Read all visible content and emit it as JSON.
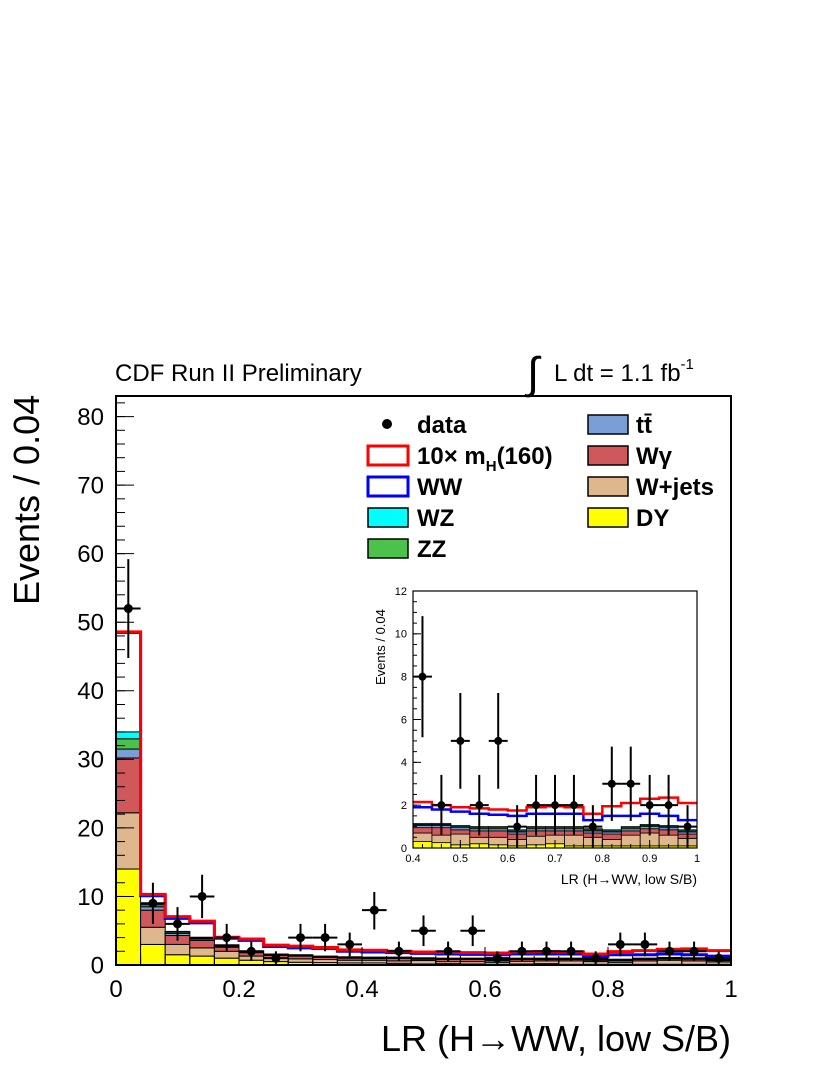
{
  "header": {
    "experiment": "CDF Run II Preliminary",
    "luminosity_prefix": "L dt = 1.1 fb",
    "luminosity_exponent": "-1"
  },
  "chart_data": [
    {
      "type": "bar",
      "stacked": true,
      "xlabel": "LR (H→WW, low S/B)",
      "ylabel": "Events / 0.04",
      "xlim": [
        0,
        1
      ],
      "ylim": [
        0,
        83
      ],
      "xticks": [
        "0",
        "0.2",
        "0.4",
        "0.6",
        "0.8",
        "1"
      ],
      "yticks": [
        "0",
        "10",
        "20",
        "30",
        "40",
        "50",
        "60",
        "70",
        "80"
      ],
      "bin_edges": [
        0,
        0.04,
        0.08,
        0.12,
        0.16,
        0.2,
        0.24,
        0.28,
        0.32,
        0.36,
        0.4,
        0.44,
        0.48,
        0.52,
        0.56,
        0.6,
        0.64,
        0.68,
        0.72,
        0.76,
        0.8,
        0.84,
        0.88,
        0.92,
        0.96,
        1.0
      ],
      "stack_order": [
        "DY",
        "W+jets",
        "Wγ",
        "tt̄",
        "ZZ",
        "WZ",
        "WW"
      ],
      "series": [
        {
          "name": "DY",
          "color": "#ffff00",
          "values": [
            14,
            3,
            1.5,
            1.3,
            1,
            0.7,
            0.5,
            0.4,
            0.35,
            0.3,
            0.3,
            0.25,
            0.15,
            0.2,
            0.15,
            0.1,
            0.15,
            0.2,
            0.1,
            0.1,
            0.1,
            0.1,
            0.1,
            0.1,
            0.1
          ]
        },
        {
          "name": "W+jets",
          "color": "#dfb78f",
          "values": [
            8.2,
            2.5,
            1.5,
            1.2,
            1,
            0.6,
            0.5,
            0.5,
            0.45,
            0.4,
            0.4,
            0.35,
            0.5,
            0.3,
            0.35,
            0.3,
            0.4,
            0.4,
            0.5,
            0.4,
            0.3,
            0.5,
            0.6,
            0.5,
            0.35
          ]
        },
        {
          "name": "Wγ",
          "color": "#d0575a",
          "values": [
            8,
            2.5,
            1.3,
            1.1,
            0.6,
            0.5,
            0.4,
            0.4,
            0.3,
            0.3,
            0.25,
            0.35,
            0.2,
            0.3,
            0.3,
            0.25,
            0.25,
            0.2,
            0.2,
            0.2,
            0.25,
            0.2,
            0.2,
            0.25,
            0.2
          ]
        },
        {
          "name": "tt̄",
          "color": "#7a9fd6",
          "values": [
            1.3,
            0.5,
            0.3,
            0.2,
            0.15,
            0.1,
            0.1,
            0.1,
            0.1,
            0.1,
            0.1,
            0.1,
            0.1,
            0.1,
            0.1,
            0.1,
            0.1,
            0.1,
            0.1,
            0.1,
            0.1,
            0.1,
            0.1,
            0.1,
            0.1
          ]
        },
        {
          "name": "ZZ",
          "color": "#4cc24c",
          "values": [
            1.5,
            0.3,
            0.2,
            0.15,
            0.1,
            0.1,
            0.05,
            0.05,
            0.05,
            0.05,
            0.05,
            0.05,
            0.05,
            0.05,
            0.05,
            0.05,
            0.05,
            0.05,
            0.05,
            0.05,
            0.05,
            0.05,
            0.05,
            0.05,
            0.05
          ]
        },
        {
          "name": "WZ",
          "color": "#00ffff",
          "values": [
            1,
            0.2,
            0.1,
            0.1,
            0.1,
            0.05,
            0.05,
            0.05,
            0.05,
            0.05,
            0.05,
            0.05,
            0.05,
            0.05,
            0.05,
            0.05,
            0.05,
            0.05,
            0.05,
            0.05,
            0.05,
            0.05,
            0.05,
            0.05,
            0.05
          ]
        },
        {
          "name": "WW",
          "color": "#0000ff",
          "values": [
            14.5,
            1.1,
            1.9,
            2.1,
            0.95,
            1.55,
            1.1,
            1.0,
            1.1,
            0.8,
            0.75,
            0.65,
            0.65,
            0.6,
            0.55,
            0.65,
            0.6,
            0.6,
            0.6,
            0.4,
            0.65,
            0.5,
            0.5,
            0.45,
            0.45
          ]
        },
        {
          "name": "10× mH(160)",
          "color": "#ff0000",
          "values": [
            0.1,
            0.2,
            0.25,
            0.25,
            0.15,
            0.2,
            0.2,
            0.25,
            0.15,
            0.2,
            0.25,
            0.2,
            0.2,
            0.25,
            0.25,
            0.25,
            0.3,
            0.35,
            0.3,
            0.3,
            0.45,
            0.6,
            0.7,
            0.85,
            0.8
          ]
        }
      ],
      "data": {
        "name": "data",
        "x": [
          0.02,
          0.06,
          0.1,
          0.14,
          0.18,
          0.22,
          0.26,
          0.3,
          0.34,
          0.38,
          0.42,
          0.46,
          0.5,
          0.54,
          0.58,
          0.62,
          0.66,
          0.7,
          0.74,
          0.78,
          0.82,
          0.86,
          0.9,
          0.94,
          0.98
        ],
        "y": [
          52,
          9,
          6,
          10,
          4,
          2,
          1,
          4,
          4,
          3,
          8,
          2,
          5,
          2,
          5,
          1,
          2,
          2,
          2,
          1,
          3,
          3,
          2,
          2,
          1
        ]
      },
      "legend": {
        "placement": "top-right",
        "left_column": [
          {
            "label": "data",
            "kind": "marker"
          },
          {
            "label_main": "10× m",
            "label_sub": "H",
            "label_tail": "(160)",
            "kind": "line",
            "color": "#ff0000"
          },
          {
            "label": "WW",
            "kind": "line",
            "color": "#0000ff"
          },
          {
            "label": "WZ",
            "kind": "box",
            "color": "#00ffff"
          },
          {
            "label": "ZZ",
            "kind": "box",
            "color": "#4cc24c"
          }
        ],
        "right_column": [
          {
            "label": "tt̄",
            "kind": "box",
            "color": "#7a9fd6"
          },
          {
            "label": "Wγ",
            "kind": "box",
            "color": "#d0575a"
          },
          {
            "label": "W+jets",
            "kind": "box",
            "color": "#dfb78f"
          },
          {
            "label": "DY",
            "kind": "box",
            "color": "#ffff00"
          }
        ]
      }
    },
    {
      "type": "bar",
      "stacked": true,
      "inset": true,
      "xlabel": "LR (H→WW, low S/B)",
      "ylabel": "Events / 0.04",
      "xlim": [
        0.4,
        1
      ],
      "ylim": [
        0,
        12
      ],
      "xticks": [
        "0.4",
        "0.5",
        "0.6",
        "0.7",
        "0.8",
        "0.9",
        "1"
      ],
      "yticks": [
        "0",
        "2",
        "4",
        "6",
        "8",
        "10",
        "12"
      ],
      "note": "zoom of the main histogram for LR between 0.4 and 1"
    }
  ]
}
